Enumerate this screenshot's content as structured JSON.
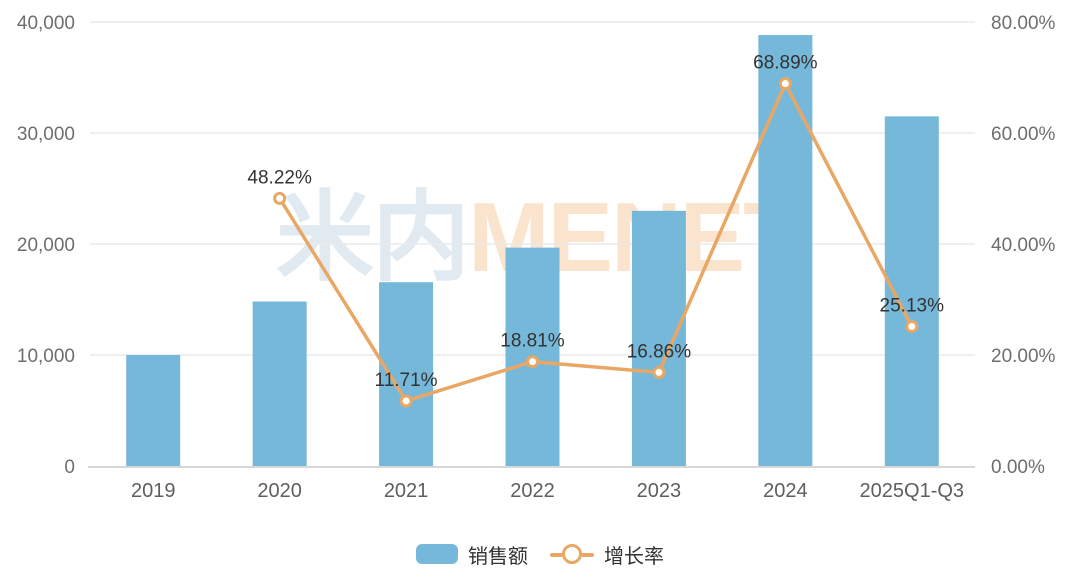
{
  "chart_data": {
    "type": "bar",
    "subtype": "bar-line-combo",
    "title": "",
    "categories": [
      "2019",
      "2020",
      "2021",
      "2022",
      "2023",
      "2024",
      "2025Q1-Q3"
    ],
    "series": [
      {
        "name": "销售额",
        "type": "bar",
        "axis": "left",
        "color": "#76b8d9",
        "values": [
          10000,
          14822,
          16558,
          19672,
          22989,
          38826,
          31500
        ],
        "values_note": "bar values estimated from pixel heights; no data labels shown"
      },
      {
        "name": "增长率",
        "type": "line",
        "axis": "right",
        "color": "#e8a764",
        "marker": "open-circle",
        "values": [
          null,
          48.22,
          11.71,
          18.81,
          16.86,
          68.89,
          25.13
        ],
        "labels": [
          null,
          "48.22%",
          "11.71%",
          "18.81%",
          "16.86%",
          "68.89%",
          "25.13%"
        ]
      }
    ],
    "left_axis": {
      "min": 0,
      "max": 40000,
      "ticks": [
        "0",
        "10,000",
        "20,000",
        "30,000",
        "40,000"
      ]
    },
    "right_axis": {
      "min": 0,
      "max": 80,
      "ticks": [
        "0.00%",
        "20.00%",
        "40.00%",
        "60.00%",
        "80.00%"
      ]
    },
    "grid": true,
    "legend_position": "bottom"
  },
  "legend": {
    "items": [
      {
        "label": "销售额",
        "type": "bar"
      },
      {
        "label": "增长率",
        "type": "line"
      }
    ]
  },
  "watermark": {
    "cn": "米内",
    "en": "MENET"
  },
  "colors": {
    "bar": "#76b8d9",
    "line": "#e8a764",
    "data_label": "#333333",
    "axis_label": "#6e6e6e",
    "x_label": "#5e5e5e",
    "gridline": "#eaeaea",
    "axis_line": "#d7d7d7",
    "background": "#ffffff"
  }
}
